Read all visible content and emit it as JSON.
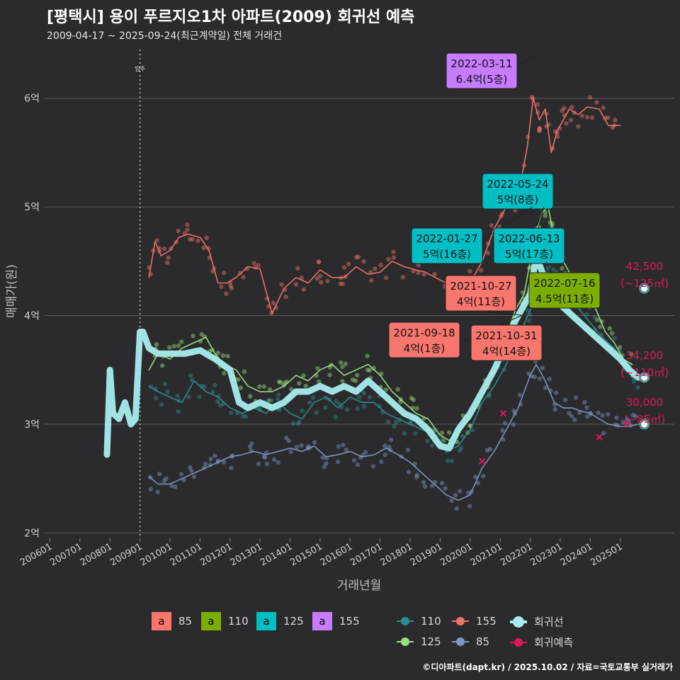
{
  "title": "[평택시] 용이 푸르지오1차 아파트(2009) 회귀선 예측",
  "subtitle": "2009-04-17 ~ 2025-09-24(최근계약일) 전체 거래건",
  "credit": "©디아파트(dapt.kr) / 2025.10.02 / 자료=국토교통부 실거래가",
  "colors": {
    "background": "#2b2b2d",
    "grid": "#5a5a5c",
    "s85": "#7f96c2",
    "s110": "#2e8c8c",
    "s125": "#9be07e",
    "s155": "#f0736a",
    "regression": "#a8ecec",
    "predict": "#e0185a",
    "ann85": "#f8766d",
    "ann110": "#7cae00",
    "ann125": "#00bfc4",
    "ann155": "#c77cff"
  },
  "chart_data": {
    "type": "line",
    "title": "[평택시] 용이 푸르지오1차 아파트(2009) 회귀선 예측",
    "xlabel": "거래년월",
    "ylabel": "매매가(원)",
    "xlim": [
      2005.8,
      2026.8
    ],
    "ylim": [
      1.95,
      6.5
    ],
    "y_ticks": [
      2,
      3,
      4,
      5,
      6
    ],
    "y_tick_labels": [
      "2억",
      "3억",
      "4억",
      "5억",
      "6억"
    ],
    "x_ticks": [
      2006,
      2007,
      2008,
      2009,
      2010,
      2011,
      2012,
      2013,
      2014,
      2015,
      2016,
      2017,
      2018,
      2019,
      2020,
      2021,
      2022,
      2023,
      2024,
      2025
    ],
    "x_tick_labels": [
      "200601",
      "200701",
      "200801",
      "200901",
      "201001",
      "201101",
      "201201",
      "201301",
      "201401",
      "201501",
      "201601",
      "201701",
      "201801",
      "201901",
      "202001",
      "202101",
      "202201",
      "202301",
      "202401",
      "202501"
    ],
    "move_in": {
      "x": 2009.0,
      "label": "입주"
    },
    "series": [
      {
        "name": "155",
        "color": "#f0736a",
        "x": [
          2009.3,
          2009.5,
          2009.7,
          2010.0,
          2010.3,
          2010.6,
          2011.0,
          2011.3,
          2011.6,
          2011.9,
          2012.2,
          2012.6,
          2013.0,
          2013.4,
          2013.8,
          2014.2,
          2014.6,
          2015.0,
          2015.4,
          2015.8,
          2016.2,
          2016.6,
          2017.0,
          2017.4,
          2017.8,
          2018.2,
          2018.5,
          2019.4,
          2020.0,
          2020.4,
          2020.8,
          2021.2,
          2021.6,
          2021.9,
          2022.1,
          2022.3,
          2022.5,
          2022.7,
          2022.9,
          2023.1,
          2023.3,
          2023.6,
          2023.9,
          2024.3,
          2024.6,
          2025.0
        ],
        "values": [
          4.35,
          4.68,
          4.55,
          4.6,
          4.72,
          4.75,
          4.72,
          4.6,
          4.3,
          4.3,
          4.35,
          4.45,
          4.43,
          4.02,
          4.25,
          4.35,
          4.3,
          4.42,
          4.35,
          4.35,
          4.45,
          4.38,
          4.4,
          4.5,
          4.45,
          4.42,
          4.4,
          4.27,
          4.3,
          4.5,
          4.8,
          5.0,
          5.1,
          5.55,
          6.0,
          5.8,
          5.9,
          5.5,
          5.7,
          5.8,
          5.9,
          5.85,
          5.92,
          5.9,
          5.75,
          5.75
        ]
      },
      {
        "name": "125",
        "color": "#9be07e",
        "x": [
          2009.3,
          2009.6,
          2010.0,
          2010.4,
          2010.8,
          2011.2,
          2011.5,
          2011.8,
          2012.2,
          2012.6,
          2013.0,
          2013.4,
          2013.8,
          2014.2,
          2014.6,
          2015.0,
          2015.4,
          2015.8,
          2016.2,
          2016.6,
          2017.0,
          2017.4,
          2017.8,
          2018.2,
          2018.6,
          2019.0,
          2019.3,
          2019.6,
          2020.0,
          2020.4,
          2020.8,
          2021.2,
          2021.5,
          2021.8,
          2022.0,
          2022.2,
          2022.4,
          2022.6,
          2022.8,
          2023.0,
          2023.3,
          2023.6,
          2023.9,
          2024.2,
          2024.5,
          2024.8,
          2025.1,
          2025.4
        ],
        "values": [
          3.5,
          3.65,
          3.6,
          3.7,
          3.75,
          3.8,
          3.65,
          3.55,
          3.5,
          3.35,
          3.3,
          3.3,
          3.35,
          3.45,
          3.4,
          3.5,
          3.55,
          3.45,
          3.5,
          3.55,
          3.45,
          3.3,
          3.2,
          3.1,
          3.05,
          2.9,
          2.85,
          2.95,
          3.05,
          3.25,
          3.55,
          3.8,
          4.05,
          4.2,
          4.5,
          4.75,
          4.95,
          5.0,
          4.7,
          4.55,
          4.4,
          4.25,
          4.15,
          4.05,
          3.85,
          3.75,
          3.6,
          3.55
        ]
      },
      {
        "name": "110",
        "color": "#2e8c8c",
        "x": [
          2009.3,
          2009.6,
          2010.0,
          2010.4,
          2010.8,
          2011.2,
          2011.6,
          2012.0,
          2012.4,
          2012.8,
          2013.2,
          2013.6,
          2014.0,
          2014.4,
          2014.8,
          2015.2,
          2015.6,
          2016.0,
          2016.4,
          2016.8,
          2017.2,
          2017.6,
          2018.0,
          2018.4,
          2018.8,
          2019.2,
          2019.6,
          2020.0,
          2020.4,
          2020.8,
          2021.2,
          2021.6,
          2022.0,
          2022.3,
          2022.6,
          2022.9,
          2023.2,
          2023.5,
          2023.8,
          2024.1,
          2024.4,
          2024.8,
          2025.1,
          2025.4,
          2025.6
        ],
        "values": [
          3.35,
          3.3,
          3.25,
          3.2,
          3.4,
          3.3,
          3.25,
          3.15,
          3.1,
          3.15,
          3.1,
          3.2,
          3.1,
          3.05,
          3.2,
          3.25,
          3.15,
          3.25,
          3.2,
          3.2,
          3.1,
          3.05,
          3.0,
          2.95,
          2.9,
          2.75,
          2.8,
          2.95,
          3.2,
          3.35,
          3.55,
          3.8,
          4.05,
          4.3,
          4.4,
          4.3,
          4.2,
          4.1,
          4.0,
          3.9,
          3.8,
          3.7,
          3.6,
          3.48,
          3.43
        ]
      },
      {
        "name": "85",
        "color": "#7f96c2",
        "x": [
          2009.3,
          2009.6,
          2010.0,
          2010.4,
          2010.8,
          2011.2,
          2011.6,
          2012.0,
          2012.4,
          2012.8,
          2013.2,
          2013.6,
          2014.0,
          2014.4,
          2014.8,
          2015.2,
          2015.6,
          2016.0,
          2016.4,
          2016.8,
          2017.2,
          2017.6,
          2018.0,
          2018.4,
          2018.8,
          2019.2,
          2019.6,
          2020.0,
          2020.4,
          2020.8,
          2021.2,
          2021.6,
          2022.0,
          2022.2,
          2022.5,
          2022.8,
          2023.1,
          2023.4,
          2023.7,
          2024.0,
          2024.3,
          2024.6,
          2025.0,
          2025.3,
          2025.6
        ],
        "values": [
          2.52,
          2.45,
          2.45,
          2.5,
          2.55,
          2.6,
          2.65,
          2.7,
          2.72,
          2.75,
          2.72,
          2.75,
          2.78,
          2.75,
          2.8,
          2.7,
          2.72,
          2.75,
          2.7,
          2.72,
          2.78,
          2.72,
          2.65,
          2.55,
          2.45,
          2.35,
          2.3,
          2.35,
          2.6,
          2.75,
          2.95,
          3.15,
          3.45,
          3.55,
          3.4,
          3.2,
          3.15,
          3.15,
          3.12,
          3.1,
          3.05,
          3.0,
          2.98,
          2.98,
          3.0
        ]
      },
      {
        "name": "회귀선",
        "color": "#a8ecec",
        "x": [
          2007.9,
          2008.0,
          2008.1,
          2008.3,
          2008.5,
          2008.7,
          2008.85,
          2009.0,
          2009.1,
          2009.3,
          2009.6,
          2010.0,
          2010.5,
          2011.0,
          2011.5,
          2012.0,
          2012.3,
          2012.6,
          2013.0,
          2013.4,
          2013.8,
          2014.2,
          2014.6,
          2015.0,
          2015.4,
          2015.8,
          2016.2,
          2016.6,
          2017.0,
          2017.4,
          2017.8,
          2018.2,
          2018.6,
          2019.0,
          2019.3,
          2019.6,
          2020.0,
          2020.4,
          2020.8,
          2021.2,
          2021.5,
          2021.8,
          2022.0,
          2022.2,
          2022.4,
          2022.7,
          2023.0,
          2023.4,
          2023.8,
          2024.2,
          2024.6,
          2025.0,
          2025.3,
          2025.6
        ],
        "values": [
          2.72,
          3.5,
          3.1,
          3.05,
          3.2,
          3.0,
          3.05,
          3.85,
          3.85,
          3.7,
          3.65,
          3.65,
          3.65,
          3.68,
          3.6,
          3.5,
          3.2,
          3.15,
          3.2,
          3.15,
          3.2,
          3.3,
          3.3,
          3.35,
          3.3,
          3.35,
          3.3,
          3.4,
          3.3,
          3.2,
          3.1,
          3.05,
          2.95,
          2.8,
          2.78,
          2.95,
          3.1,
          3.3,
          3.5,
          3.75,
          3.95,
          4.1,
          4.2,
          4.55,
          4.4,
          4.25,
          4.1,
          4.0,
          3.9,
          3.8,
          3.7,
          3.6,
          3.5,
          3.43
        ]
      }
    ],
    "predictions": [
      {
        "area": "~125㎡",
        "value": 42500,
        "value_label": "42,500",
        "area_label": "(~125㎡)",
        "x": 2025.8,
        "y": 4.25
      },
      {
        "area": "~110㎡",
        "value": 34200,
        "value_label": "34,200",
        "area_label": "(~110㎡)",
        "x": 2025.8,
        "y": 3.43
      },
      {
        "area": "~85㎡",
        "value": 30000,
        "value_label": "30,000",
        "area_label": "(~85㎡)",
        "x": 2025.8,
        "y": 3.0
      }
    ],
    "annotations": [
      {
        "date": "2022-03-11",
        "price": "6.4억(5층)",
        "area": "155",
        "x": 2022.19,
        "y": 6.4
      },
      {
        "date": "2022-05-24",
        "price": "5억(8층)",
        "area": "125",
        "x": 2022.4,
        "y": 5.0
      },
      {
        "date": "2022-01-27",
        "price": "5억(16층)",
        "area": "125",
        "x": 2022.07,
        "y": 5.0
      },
      {
        "date": "2022-06-13",
        "price": "5억(17층)",
        "area": "125",
        "x": 2022.45,
        "y": 5.0
      },
      {
        "date": "2021-10-27",
        "price": "4억(11층)",
        "area": "85",
        "x": 2021.82,
        "y": 4.0
      },
      {
        "date": "2022-07-16",
        "price": "4.5억(11층)",
        "area": "110",
        "x": 2022.54,
        "y": 4.5
      },
      {
        "date": "2021-09-18",
        "price": "4억(1층)",
        "area": "85",
        "x": 2021.71,
        "y": 4.0
      },
      {
        "date": "2021-10-31",
        "price": "4억(14층)",
        "area": "85",
        "x": 2021.83,
        "y": 4.0
      }
    ]
  },
  "legend": {
    "boxes": [
      {
        "glyph": "a",
        "label": "85",
        "color": "#f8766d"
      },
      {
        "glyph": "a",
        "label": "110",
        "color": "#7cae00"
      },
      {
        "glyph": "a",
        "label": "125",
        "color": "#00bfc4"
      },
      {
        "glyph": "a",
        "label": "155",
        "color": "#c77cff"
      }
    ],
    "lines": [
      {
        "label": "110",
        "color": "#2e8c8c"
      },
      {
        "label": "155",
        "color": "#f0736a"
      },
      {
        "label": "회귀선",
        "color": "#a8ecec"
      },
      {
        "label": "125",
        "color": "#9be07e"
      },
      {
        "label": "85",
        "color": "#7f96c2"
      },
      {
        "label": "회귀예측",
        "color": "#e0185a"
      }
    ]
  }
}
